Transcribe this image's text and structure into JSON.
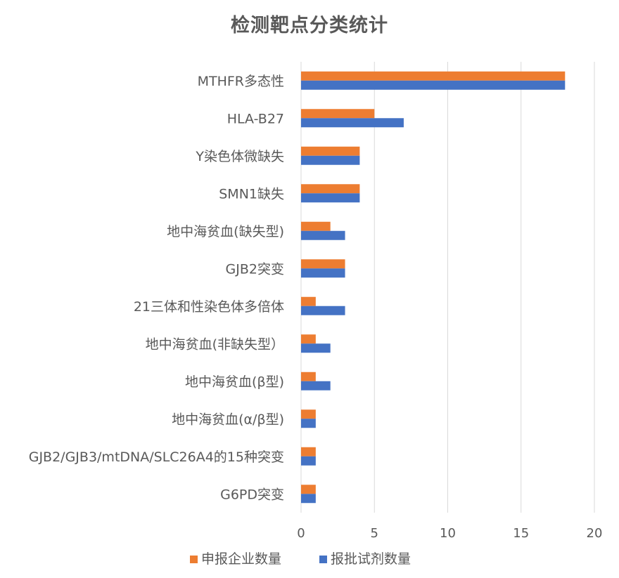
{
  "chart_data": {
    "type": "bar",
    "orientation": "horizontal",
    "title": "检测靶点分类统计",
    "xlabel": "",
    "ylabel": "",
    "xlim": [
      0,
      20
    ],
    "x_ticks": [
      "0",
      "5",
      "10",
      "15",
      "20"
    ],
    "grid": "vertical",
    "legend_position": "bottom",
    "categories": [
      "MTHFR多态性",
      "HLA-B27",
      "Y染色体微缺失",
      "SMN1缺失",
      "地中海贫血(缺失型)",
      "GJB2突变",
      "21三体和性染色体多倍体",
      "地中海贫血(非缺失型）",
      "地中海贫血(β型)",
      "地中海贫血(α/β型)",
      "GJB2/GJB3/mtDNA/SLC26A4的15种突变",
      "G6PD突变"
    ],
    "series": [
      {
        "name": "申报企业数量",
        "color": "#ED7D31",
        "values": [
          18,
          5,
          4,
          4,
          2,
          3,
          1,
          1,
          1,
          1,
          1,
          1
        ]
      },
      {
        "name": "报批试剂数量",
        "color": "#4472C4",
        "values": [
          18,
          7,
          4,
          4,
          3,
          3,
          3,
          2,
          2,
          1,
          1,
          1
        ]
      }
    ],
    "gridline_color": "#D9D9D9",
    "text_color": "#595959"
  }
}
